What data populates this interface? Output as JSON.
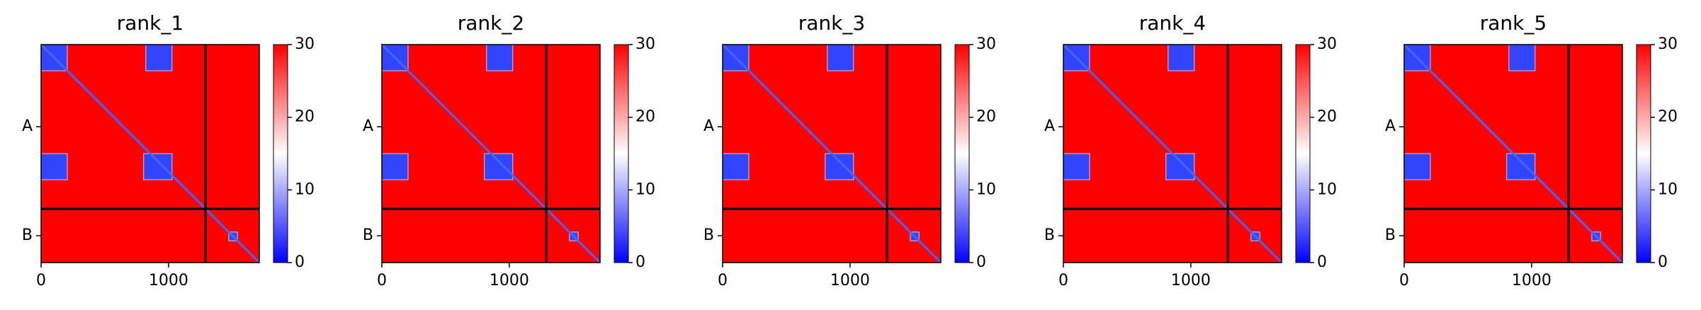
{
  "chart_data": [
    {
      "type": "heatmap",
      "title": "rank_1",
      "xlim": [
        0,
        1712
      ],
      "ylim": [
        1712,
        0
      ],
      "xticks": [
        0,
        1000
      ],
      "yticks": [
        {
          "value": 645,
          "label": "A"
        },
        {
          "value": 1501,
          "label": "B"
        }
      ],
      "chain_breaks": [
        1290
      ],
      "colormap": "bwr",
      "clim": [
        0,
        30
      ],
      "cticks": [
        0,
        10,
        20,
        30
      ]
    },
    {
      "type": "heatmap",
      "title": "rank_2",
      "xlim": [
        0,
        1712
      ],
      "ylim": [
        1712,
        0
      ],
      "xticks": [
        0,
        1000
      ],
      "yticks": [
        {
          "value": 645,
          "label": "A"
        },
        {
          "value": 1501,
          "label": "B"
        }
      ],
      "chain_breaks": [
        1290
      ],
      "colormap": "bwr",
      "clim": [
        0,
        30
      ],
      "cticks": [
        0,
        10,
        20,
        30
      ]
    },
    {
      "type": "heatmap",
      "title": "rank_3",
      "xlim": [
        0,
        1712
      ],
      "ylim": [
        1712,
        0
      ],
      "xticks": [
        0,
        1000
      ],
      "yticks": [
        {
          "value": 645,
          "label": "A"
        },
        {
          "value": 1501,
          "label": "B"
        }
      ],
      "chain_breaks": [
        1290
      ],
      "colormap": "bwr",
      "clim": [
        0,
        30
      ],
      "cticks": [
        0,
        10,
        20,
        30
      ]
    },
    {
      "type": "heatmap",
      "title": "rank_4",
      "xlim": [
        0,
        1712
      ],
      "ylim": [
        1712,
        0
      ],
      "xticks": [
        0,
        1000
      ],
      "yticks": [
        {
          "value": 645,
          "label": "A"
        },
        {
          "value": 1501,
          "label": "B"
        }
      ],
      "chain_breaks": [
        1290
      ],
      "colormap": "bwr",
      "clim": [
        0,
        30
      ],
      "cticks": [
        0,
        10,
        20,
        30
      ]
    },
    {
      "type": "heatmap",
      "title": "rank_5",
      "xlim": [
        0,
        1712
      ],
      "ylim": [
        1712,
        0
      ],
      "xticks": [
        0,
        1000
      ],
      "yticks": [
        {
          "value": 645,
          "label": "A"
        },
        {
          "value": 1501,
          "label": "B"
        }
      ],
      "chain_breaks": [
        1290
      ],
      "colormap": "bwr",
      "clim": [
        0,
        30
      ],
      "cticks": [
        0,
        10,
        20,
        30
      ]
    }
  ]
}
